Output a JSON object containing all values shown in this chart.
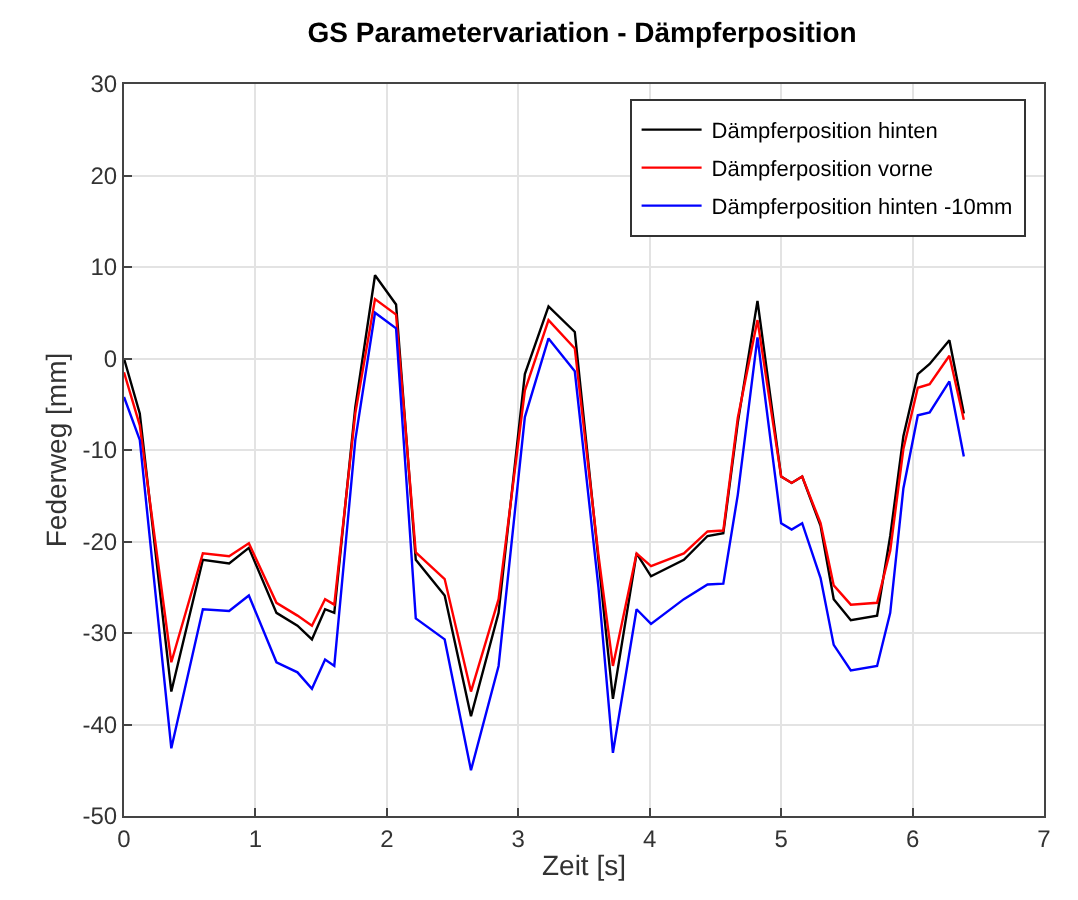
{
  "chart_data": {
    "type": "line",
    "title": "GS Parametervariation - Dämpferposition",
    "xlabel": "Zeit [s]",
    "ylabel": "Federweg [mm]",
    "x": [
      0,
      0.12,
      0.36,
      0.6,
      0.8,
      0.95,
      1.16,
      1.32,
      1.43,
      1.53,
      1.6,
      1.76,
      1.91,
      2.07,
      2.22,
      2.44,
      2.64,
      2.85,
      3.05,
      3.23,
      3.43,
      3.61,
      3.72,
      3.9,
      4.01,
      4.26,
      4.44,
      4.56,
      4.67,
      4.82,
      5.0,
      5.08,
      5.16,
      5.3,
      5.4,
      5.53,
      5.73,
      5.83,
      5.93,
      6.04,
      6.13,
      6.28,
      6.39
    ],
    "series": [
      {
        "name": "Dämpferposition hinten",
        "color": "#000000",
        "values": [
          0,
          -6,
          -36.4,
          -22,
          -22.4,
          -20.7,
          -27.8,
          -29.2,
          -30.7,
          -27.4,
          -27.8,
          -5.3,
          9.1,
          5.9,
          -22,
          -25.9,
          -39.1,
          -27.8,
          -1.7,
          5.7,
          2.9,
          -22,
          -37.2,
          -21.3,
          -23.8,
          -22,
          -19.4,
          -19.1,
          -7,
          6.3,
          -12.9,
          -13.6,
          -12.9,
          -18.3,
          -26.3,
          -28.6,
          -28.1,
          -19.4,
          -8.5,
          -1.7,
          -0.6,
          2.0,
          -6
        ]
      },
      {
        "name": "Dämpferposition vorne",
        "color": "#ff0000",
        "values": [
          -1.5,
          -7.3,
          -33.2,
          -21.3,
          -21.6,
          -20.2,
          -26.7,
          -28.1,
          -29.2,
          -26.3,
          -26.9,
          -6,
          6.5,
          4.8,
          -21.2,
          -24.1,
          -36.4,
          -26.3,
          -3.5,
          4.2,
          1.1,
          -21.5,
          -33.6,
          -21.3,
          -22.7,
          -21.3,
          -18.9,
          -18.8,
          -6.5,
          4.2,
          -12.9,
          -13.6,
          -12.9,
          -18,
          -24.8,
          -26.9,
          -26.7,
          -21,
          -9.9,
          -3.2,
          -2.8,
          0.3,
          -6.7
        ]
      },
      {
        "name": "Dämpferposition hinten -10mm",
        "color": "#0000ff",
        "values": [
          -4.2,
          -8.9,
          -42.6,
          -27.4,
          -27.6,
          -25.9,
          -33.2,
          -34.3,
          -36.1,
          -32.9,
          -33.6,
          -8.9,
          5.0,
          3.3,
          -28.4,
          -30.7,
          -45,
          -33.6,
          -6.4,
          2.2,
          -1.4,
          -25,
          -43.1,
          -27.4,
          -29,
          -26.3,
          -24.7,
          -24.6,
          -14.9,
          2.3,
          -18,
          -18.7,
          -18,
          -24,
          -31.3,
          -34.1,
          -33.6,
          -27.8,
          -14.2,
          -6.2,
          -5.9,
          -2.5,
          -10.7
        ]
      }
    ],
    "xlim": [
      0,
      7
    ],
    "xticks": [
      0,
      1,
      2,
      3,
      4,
      5,
      6,
      7
    ],
    "ylim": [
      -50,
      30
    ],
    "yticks": [
      -50,
      -40,
      -30,
      -20,
      -10,
      0,
      10,
      20,
      30
    ],
    "grid": true,
    "legend": "top right",
    "marker": "none",
    "line_style": "solid"
  }
}
